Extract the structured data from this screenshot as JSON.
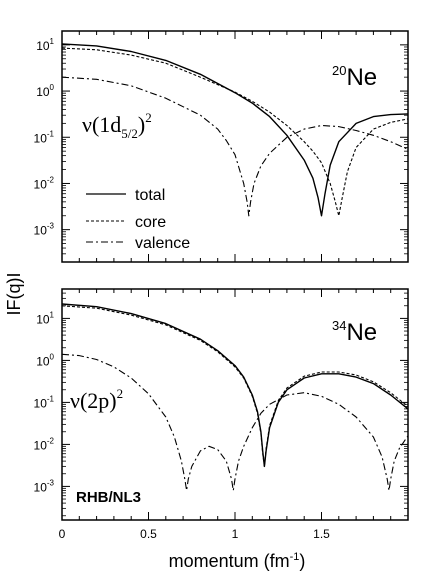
{
  "chart_data": [
    {
      "type": "line",
      "panel": "top",
      "nucleus": {
        "mass": "20",
        "symbol": "Ne"
      },
      "configuration": {
        "prefix": "ν(1d",
        "subscript": "5/2",
        "suffix": ")",
        "power": "2"
      },
      "xlim": [
        0,
        2.0
      ],
      "ylim_log10": [
        -3.7,
        1.3
      ],
      "yscale": "log",
      "yticks": [
        {
          "base": "10",
          "exp": "1",
          "value": 10
        },
        {
          "base": "10",
          "exp": "0",
          "value": 1
        },
        {
          "base": "10",
          "exp": "-1",
          "value": 0.1
        },
        {
          "base": "10",
          "exp": "-2",
          "value": 0.01
        },
        {
          "base": "10",
          "exp": "-3",
          "value": 0.001
        }
      ],
      "legend": {
        "position": "lower-left",
        "entries": [
          {
            "label": "total",
            "style": "solid"
          },
          {
            "label": "core",
            "style": "dashed"
          },
          {
            "label": "valence",
            "style": "dashdot"
          }
        ]
      },
      "series": [
        {
          "name": "total",
          "style": "solid",
          "x": [
            0,
            0.2,
            0.4,
            0.6,
            0.8,
            1.0,
            1.1,
            1.2,
            1.3,
            1.4,
            1.45,
            1.48,
            1.5,
            1.52,
            1.55,
            1.6,
            1.7,
            1.8,
            1.9,
            2.0
          ],
          "y": [
            10.5,
            9.5,
            7.2,
            4.6,
            2.3,
            0.92,
            0.55,
            0.28,
            0.11,
            0.032,
            0.013,
            0.005,
            0.002,
            0.006,
            0.025,
            0.08,
            0.2,
            0.28,
            0.31,
            0.32
          ]
        },
        {
          "name": "core",
          "style": "dashed",
          "x": [
            0,
            0.2,
            0.4,
            0.6,
            0.8,
            1.0,
            1.1,
            1.2,
            1.3,
            1.4,
            1.45,
            1.5,
            1.55,
            1.58,
            1.6,
            1.62,
            1.65,
            1.7,
            1.8,
            1.9,
            2.0
          ],
          "y": [
            8.5,
            7.8,
            6.0,
            4.0,
            2.0,
            0.95,
            0.6,
            0.35,
            0.18,
            0.08,
            0.05,
            0.028,
            0.01,
            0.004,
            0.002,
            0.005,
            0.018,
            0.06,
            0.15,
            0.21,
            0.25
          ]
        },
        {
          "name": "valence",
          "style": "dashdot",
          "x": [
            0,
            0.2,
            0.4,
            0.6,
            0.8,
            0.9,
            0.95,
            1.0,
            1.05,
            1.07,
            1.08,
            1.09,
            1.11,
            1.15,
            1.2,
            1.3,
            1.4,
            1.5,
            1.6,
            1.7,
            1.8,
            1.9,
            2.0
          ],
          "y": [
            2.0,
            1.8,
            1.3,
            0.7,
            0.3,
            0.15,
            0.085,
            0.042,
            0.01,
            0.004,
            0.002,
            0.004,
            0.01,
            0.024,
            0.045,
            0.1,
            0.15,
            0.18,
            0.17,
            0.14,
            0.11,
            0.08,
            0.055
          ]
        }
      ]
    },
    {
      "type": "line",
      "panel": "bottom",
      "nucleus": {
        "mass": "34",
        "symbol": "Ne"
      },
      "configuration": {
        "prefix": "ν(2p)",
        "subscript": "",
        "suffix": "",
        "power": "2"
      },
      "model_label": "RHB/NL3",
      "xlabel": "momentum (fm",
      "xlabel_sup": "-1",
      "xlabel_end": ")",
      "xlim": [
        0,
        2.0
      ],
      "ylim_log10": [
        -3.8,
        1.7
      ],
      "yscale": "log",
      "xticks": [
        {
          "label": "0",
          "value": 0
        },
        {
          "label": "0.5",
          "value": 0.5
        },
        {
          "label": "1",
          "value": 1.0
        },
        {
          "label": "1.5",
          "value": 1.5
        }
      ],
      "yticks": [
        {
          "base": "10",
          "exp": "1",
          "value": 10
        },
        {
          "base": "10",
          "exp": "0",
          "value": 1
        },
        {
          "base": "10",
          "exp": "-1",
          "value": 0.1
        },
        {
          "base": "10",
          "exp": "-2",
          "value": 0.01
        },
        {
          "base": "10",
          "exp": "-3",
          "value": 0.001
        }
      ],
      "series": [
        {
          "name": "total",
          "style": "solid",
          "x": [
            0,
            0.2,
            0.4,
            0.6,
            0.8,
            0.9,
            1.0,
            1.05,
            1.1,
            1.13,
            1.15,
            1.16,
            1.17,
            1.18,
            1.2,
            1.25,
            1.3,
            1.4,
            1.5,
            1.6,
            1.7,
            1.8,
            1.9,
            2.0
          ],
          "y": [
            22,
            19,
            13,
            7.5,
            3.2,
            1.7,
            0.75,
            0.4,
            0.15,
            0.06,
            0.02,
            0.007,
            0.003,
            0.007,
            0.025,
            0.1,
            0.2,
            0.38,
            0.48,
            0.48,
            0.4,
            0.28,
            0.15,
            0.07
          ]
        },
        {
          "name": "core",
          "style": "dashed",
          "x": [
            0,
            0.2,
            0.4,
            0.6,
            0.8,
            0.9,
            1.0,
            1.05,
            1.1,
            1.13,
            1.15,
            1.16,
            1.17,
            1.18,
            1.2,
            1.25,
            1.3,
            1.4,
            1.5,
            1.6,
            1.7,
            1.8,
            1.9,
            2.0
          ],
          "y": [
            20,
            17.5,
            12,
            7,
            3,
            1.6,
            0.7,
            0.38,
            0.14,
            0.055,
            0.018,
            0.006,
            0.003,
            0.008,
            0.028,
            0.11,
            0.22,
            0.42,
            0.53,
            0.53,
            0.45,
            0.31,
            0.17,
            0.08
          ]
        },
        {
          "name": "valence",
          "style": "dashdot",
          "x": [
            0,
            0.1,
            0.2,
            0.3,
            0.4,
            0.5,
            0.6,
            0.65,
            0.69,
            0.71,
            0.72,
            0.73,
            0.75,
            0.8,
            0.85,
            0.9,
            0.95,
            0.98,
            0.99,
            1.0,
            1.02,
            1.05,
            1.1,
            1.15,
            1.2,
            1.3,
            1.4,
            1.5,
            1.6,
            1.7,
            1.8,
            1.85,
            1.88,
            1.89,
            1.9,
            1.92,
            1.95,
            2.0
          ],
          "y": [
            1.4,
            1.3,
            1.05,
            0.7,
            0.38,
            0.16,
            0.045,
            0.015,
            0.004,
            0.0015,
            0.0008,
            0.0015,
            0.003,
            0.007,
            0.009,
            0.0075,
            0.004,
            0.0015,
            0.0008,
            0.0015,
            0.004,
            0.009,
            0.025,
            0.055,
            0.09,
            0.15,
            0.17,
            0.14,
            0.09,
            0.045,
            0.015,
            0.005,
            0.0015,
            0.0008,
            0.0015,
            0.004,
            0.008,
            0.016
          ]
        }
      ]
    }
  ],
  "shared_ylabel": "IF(q)I"
}
